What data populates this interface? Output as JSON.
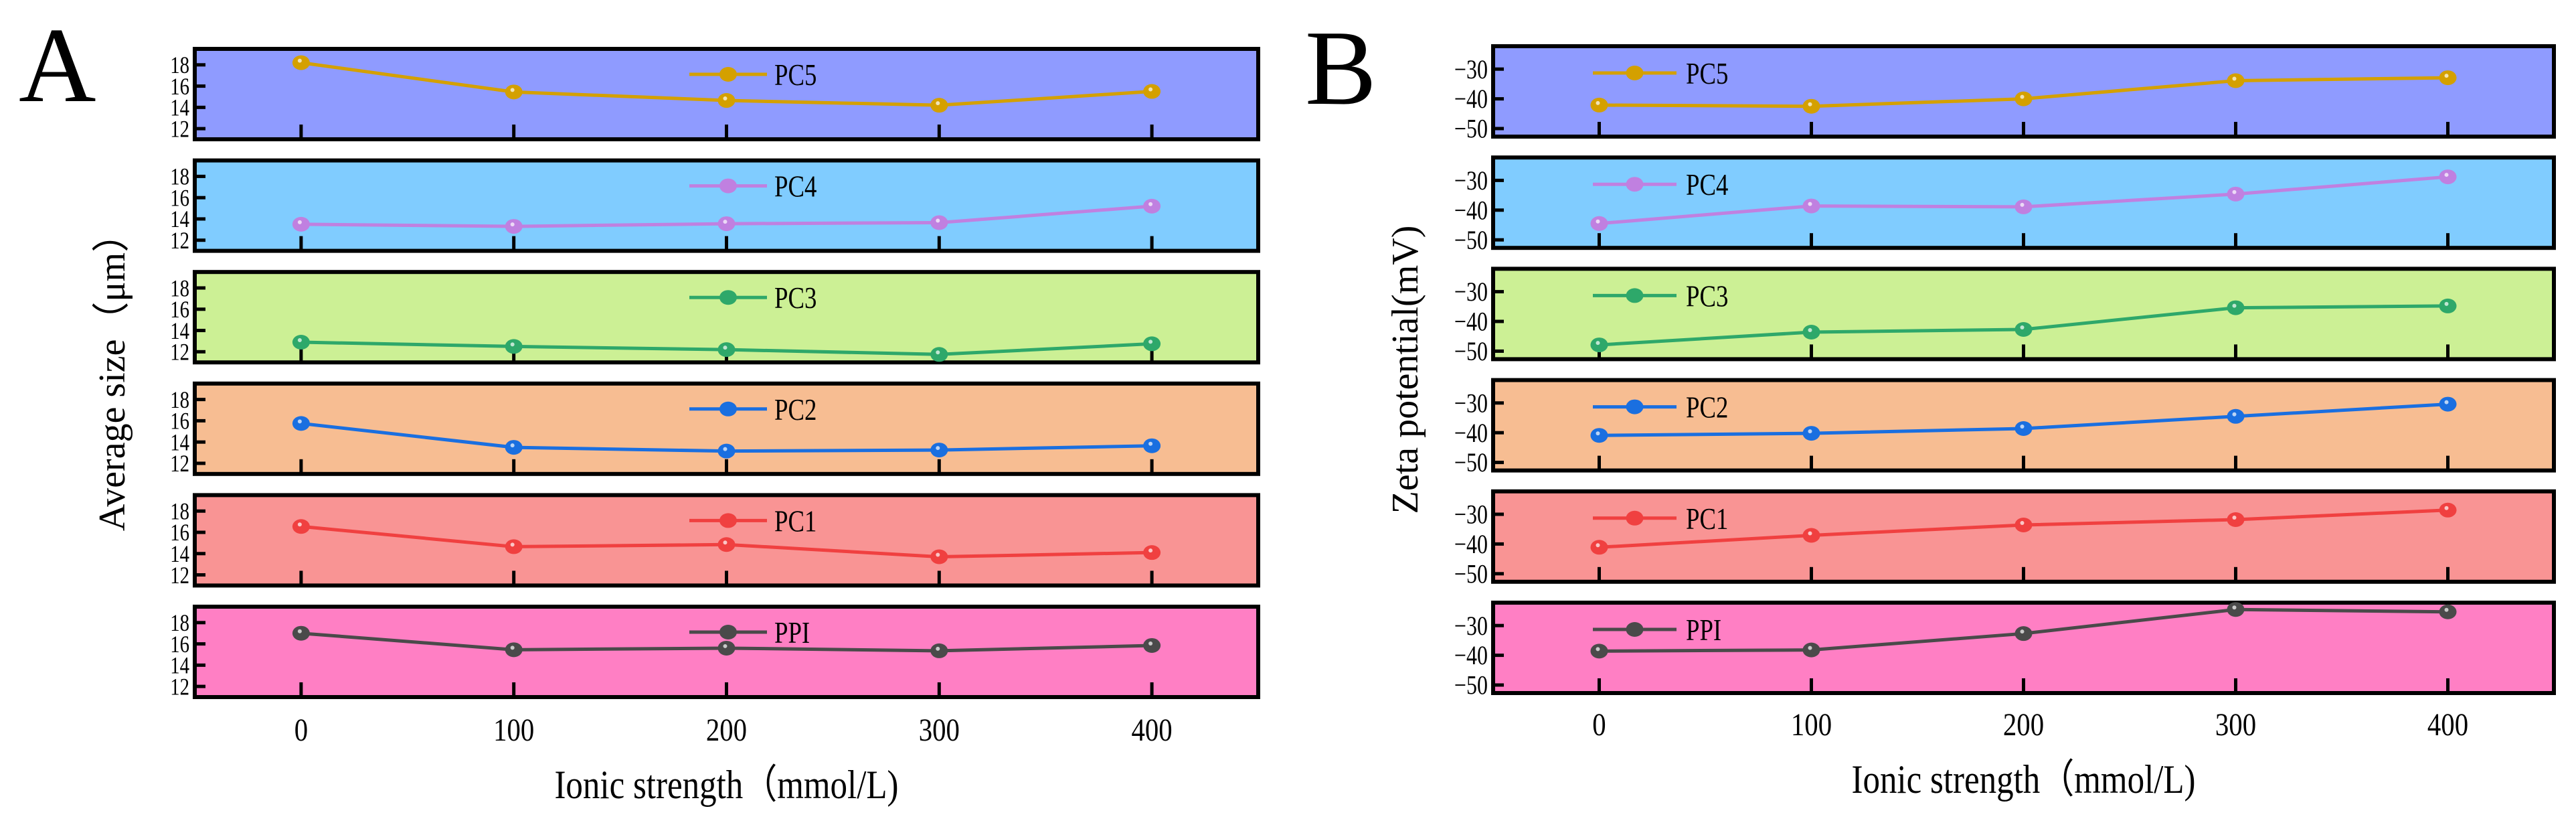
{
  "chart_data": [
    {
      "panel_label": "A",
      "type": "line",
      "xlabel": "Ionic strength（mmol/L)",
      "ylabel": "Average size（μm）",
      "x": [
        0,
        100,
        200,
        300,
        400
      ],
      "xticks": [
        "0",
        "100",
        "200",
        "300",
        "400"
      ],
      "xlim": [
        -50,
        450
      ],
      "ylim": [
        11,
        19.5
      ],
      "yticks": [
        12,
        14,
        16,
        18
      ],
      "ytick_labels": [
        "12",
        "14",
        "16",
        "18"
      ],
      "legend_placement": "top-center",
      "series": [
        {
          "name": "PC5",
          "color": "#D4A000",
          "background": "#8F9BFF",
          "values": [
            18.2,
            15.45,
            14.65,
            14.2,
            15.5
          ]
        },
        {
          "name": "PC4",
          "color": "#C080E0",
          "background": "#80CCFF",
          "values": [
            13.5,
            13.3,
            13.55,
            13.65,
            15.2
          ]
        },
        {
          "name": "PC3",
          "color": "#2EA86A",
          "background": "#CCF095",
          "values": [
            12.9,
            12.5,
            12.2,
            11.75,
            12.75
          ]
        },
        {
          "name": "PC2",
          "color": "#1A6FE0",
          "background": "#F7BD92",
          "values": [
            15.75,
            13.5,
            13.15,
            13.25,
            13.65
          ]
        },
        {
          "name": "PC1",
          "color": "#F04040",
          "background": "#F99494",
          "values": [
            16.55,
            14.65,
            14.85,
            13.7,
            14.1
          ]
        },
        {
          "name": "PPI",
          "color": "#4A4A4A",
          "background": "#FF7FC4",
          "values": [
            17.0,
            15.45,
            15.6,
            15.35,
            15.85
          ]
        }
      ]
    },
    {
      "panel_label": "B",
      "type": "line",
      "xlabel": "Ionic strength（mmol/L)",
      "ylabel": "Zeta potential(mV)",
      "x": [
        0,
        100,
        200,
        300,
        400
      ],
      "xticks": [
        "0",
        "100",
        "200",
        "300",
        "400"
      ],
      "xlim": [
        -50,
        450
      ],
      "ylim": [
        -52.7,
        -22.3
      ],
      "yticks": [
        -30,
        -40,
        -50
      ],
      "ytick_labels": [
        "−30",
        "−40",
        "−50"
      ],
      "legend_placement": "top-left",
      "series": [
        {
          "name": "PC5",
          "color": "#D4A000",
          "background": "#8F9BFF",
          "values": [
            -42.1,
            -42.5,
            -40.0,
            -33.9,
            -32.9
          ]
        },
        {
          "name": "PC4",
          "color": "#C080E0",
          "background": "#80CCFF",
          "values": [
            -44.5,
            -38.6,
            -38.9,
            -34.6,
            -28.8
          ]
        },
        {
          "name": "PC3",
          "color": "#2EA86A",
          "background": "#CCF095",
          "values": [
            -47.9,
            -43.6,
            -42.7,
            -35.4,
            -34.8
          ]
        },
        {
          "name": "PC2",
          "color": "#1A6FE0",
          "background": "#F7BD92",
          "values": [
            -40.9,
            -40.2,
            -38.6,
            -34.5,
            -30.4
          ]
        },
        {
          "name": "PC1",
          "color": "#F04040",
          "background": "#F99494",
          "values": [
            -41.1,
            -37.1,
            -33.6,
            -31.8,
            -28.6
          ]
        },
        {
          "name": "PPI",
          "color": "#4A4A4A",
          "background": "#FF7FC4",
          "values": [
            -38.6,
            -38.2,
            -32.7,
            -24.6,
            -25.4
          ]
        }
      ]
    }
  ]
}
